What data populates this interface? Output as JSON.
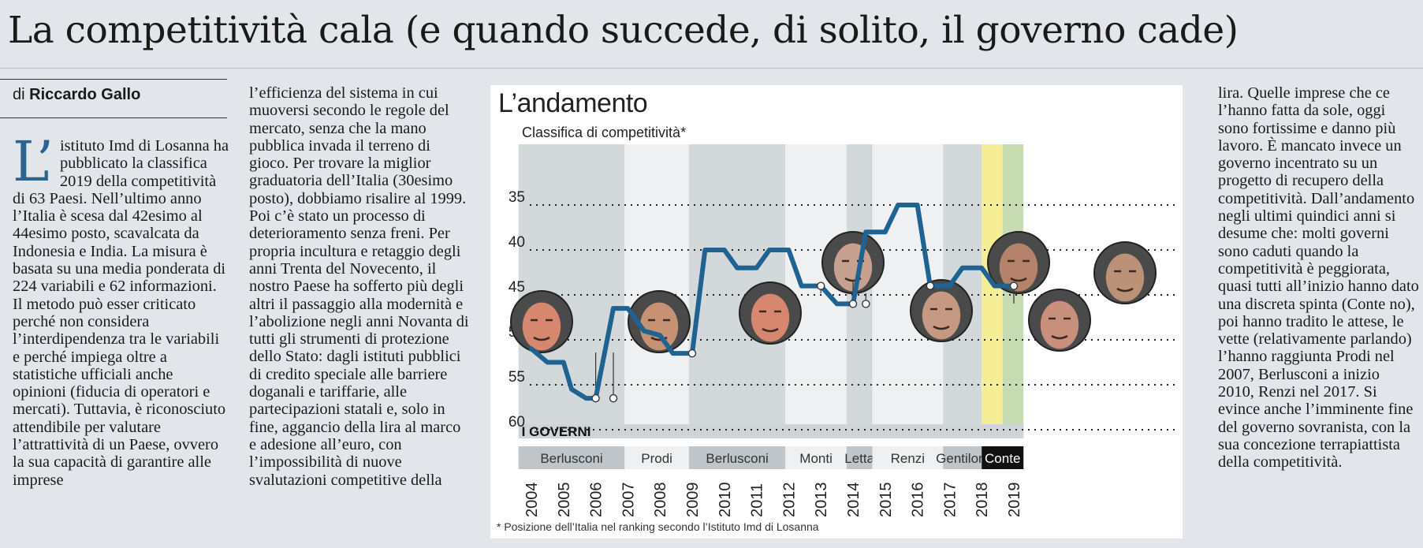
{
  "headline": "La competitività cala (e quando succede, di solito, il governo cade)",
  "byline": {
    "prefix": "di",
    "author": "Riccardo Gallo"
  },
  "article": {
    "dropcap": "L’",
    "col1": "istituto Imd di Losanna ha pubblicato la classifica 2019 della competitività di 63 Paesi. Nell’ultimo anno l’Italia è scesa dal 42esimo al 44esimo posto, scavalcata da Indonesia e India. La misura è basata su una media ponderata di 224 variabili e 62 informazioni. Il metodo può esser criticato perché non considera l’interdipendenza tra le variabili e perché impiega oltre a statistiche ufficiali anche opinioni (fiducia di operatori e mercati). Tuttavia, è riconosciuto attendibile per valutare l’attrattività di un Paese, ovvero la sua capacità di garantire alle imprese",
    "col2": "l’efficienza del sistema in cui muoversi secondo le regole del mercato, senza che la mano pubblica invada il terreno di gioco. Per trovare la miglior graduatoria dell’Italia (30esimo posto), dobbiamo risalire al 1999. Poi c’è stato un processo di deterioramento senza freni. Per propria incultura e retaggio degli anni Trenta del Novecento, il nostro Paese ha sofferto più degli altri il passaggio alla modernità e l’abolizione negli anni Novanta di tutti gli strumenti di protezione dello Stato: dagli istituti pubblici di credito speciale alle barriere doganali e tariffarie, alle partecipazioni statali e, solo in fine, aggancio della lira al marco e adesione all’euro, con l’impossibilità di nuove svalutazioni competitive della",
    "col4": "lira. Quelle imprese che ce l’hanno fatta da sole, oggi sono fortissime e danno più lavoro. È mancato invece un governo incentrato su un progetto di recupero della competitività. Dall’andamento negli ultimi quindici anni si desume che: molti governi sono caduti quando la competitività è peggiorata, quasi tutti all’inizio hanno dato una discreta spinta (Conte no), poi hanno tradito le attese, le vette (relativamente parlando) l’hanno raggiunta Prodi nel 2007, Berlusconi a inizio 2010, Renzi nel 2017. Si evince anche l’imminente fine del governo sovranista, con la sua concezione terrapiattista della competitività."
  },
  "chart_data": {
    "type": "line",
    "title": "L’andamento",
    "ylabel": "Classifica di competitività*",
    "note": "* Posizione dell’Italia nel ranking secondo l’Istituto Imd di Losanna",
    "y_ticks": [
      "35",
      "40",
      "45",
      "50",
      "55",
      "60"
    ],
    "ylim": [
      63,
      34
    ],
    "y_inverted": true,
    "x_ticks": [
      "2004",
      "2005",
      "2006",
      "2007",
      "2008",
      "2009",
      "2010",
      "2011",
      "2012",
      "2013",
      "2014",
      "2015",
      "2016",
      "2017",
      "2018",
      "2019"
    ],
    "x": [
      2004.0,
      2004.5,
      2005.0,
      2005.25,
      2005.7,
      2006.0,
      2006.55,
      2007.0,
      2007.5,
      2008.0,
      2008.4,
      2009.0,
      2009.4,
      2010.0,
      2010.4,
      2011.0,
      2011.4,
      2012.0,
      2012.4,
      2013.0,
      2013.5,
      2014.0,
      2014.4,
      2015.0,
      2015.4,
      2016.0,
      2016.4,
      2017.0,
      2017.4,
      2018.0,
      2018.4,
      2019.0
    ],
    "y": [
      51,
      52.5,
      52.5,
      55.5,
      56.5,
      56.5,
      46.5,
      46.5,
      49,
      49.5,
      51.5,
      51.5,
      40,
      40,
      42,
      42,
      40,
      40,
      44,
      44,
      46,
      46,
      38,
      38,
      35,
      35,
      44,
      44,
      42,
      42,
      44,
      44
    ],
    "line_color": "#1e6391",
    "bands": [
      "Berlusconi",
      "Prodi",
      "Berlusconi",
      "Monti",
      "Letta",
      "Renzi",
      "Gentiloni",
      "Conte"
    ],
    "governments_label": "I GOVERNI",
    "governments": [
      {
        "name": "Berlusconi",
        "portrait_icon": "berlusconi-portrait-icon"
      },
      {
        "name": "Prodi",
        "portrait_icon": "prodi-portrait-icon"
      },
      {
        "name": "Berlusconi",
        "portrait_icon": "berlusconi-portrait-icon"
      },
      {
        "name": "Monti",
        "portrait_icon": "monti-portrait-icon"
      },
      {
        "name": "Letta",
        "portrait_icon": "letta-portrait-icon"
      },
      {
        "name": "Renzi",
        "portrait_icon": "renzi-portrait-icon"
      },
      {
        "name": "Gentiloni",
        "portrait_icon": "gentiloni-portrait-icon"
      },
      {
        "name": "Conte",
        "portrait_icon": "conte-portrait-icon"
      }
    ],
    "grid": "dotted horizontal",
    "colors": {
      "band_dark": "#d3d8db",
      "band_light": "#eef0f1",
      "conte_band": "#f6ee95",
      "gentiloni_band": "#c8dcb4",
      "conte_label_bg": "#111111"
    }
  }
}
